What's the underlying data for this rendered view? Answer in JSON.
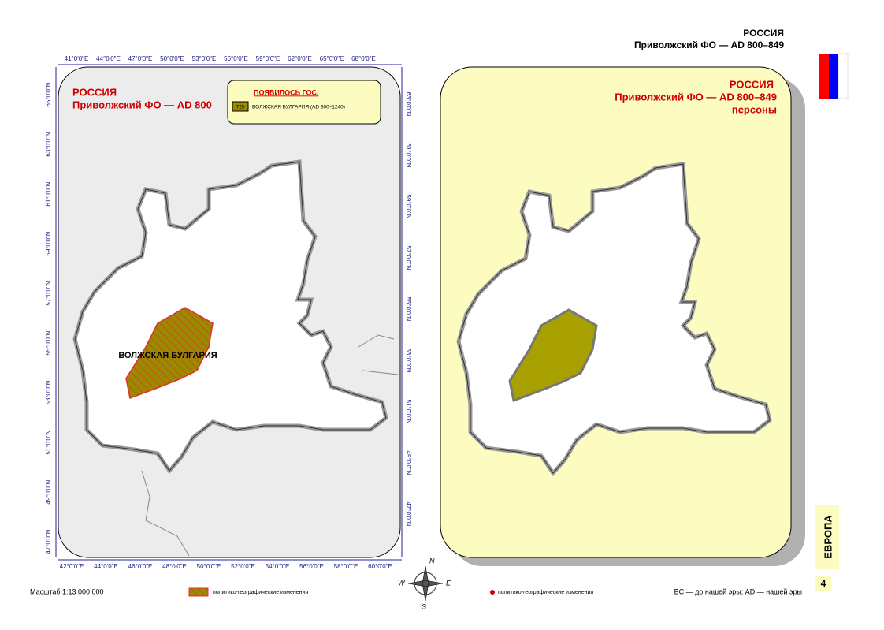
{
  "header": {
    "country": "РОССИЯ",
    "subtitle": "Приволжский ФО — AD 800–849"
  },
  "left_map": {
    "title": "РОССИЯ",
    "subtitle": "Приволжский ФО — AD 800",
    "legend": {
      "heading": "ПОЯВИЛОСЬ ГОС.",
      "code": "725",
      "entry": "ВОЛЖСКАЯ БУЛГАРИЯ (AD 800–1240)"
    },
    "region_label": "ВОЛЖСКАЯ БУЛГАРИЯ",
    "top_ticks": [
      "41°0'0\"E",
      "44°0'0\"E",
      "47°0'0\"E",
      "50°0'0\"E",
      "53°0'0\"E",
      "56°0'0\"E",
      "59°0'0\"E",
      "62°0'0\"E",
      "65°0'0\"E",
      "68°0'0\"E"
    ],
    "bottom_ticks": [
      "42°0'0\"E",
      "44°0'0\"E",
      "46°0'0\"E",
      "48°0'0\"E",
      "50°0'0\"E",
      "52°0'0\"E",
      "54°0'0\"E",
      "56°0'0\"E",
      "58°0'0\"E",
      "60°0'0\"E"
    ],
    "left_ticks": [
      "65°0'0\"N",
      "63°0'0\"N",
      "61°0'0\"N",
      "59°0'0\"N",
      "57°0'0\"N",
      "55°0'0\"N",
      "53°0'0\"N",
      "51°0'0\"N",
      "49°0'0\"N",
      "47°0'0\"N"
    ],
    "right_ticks": [
      "63°0'0\"N",
      "61°0'0\"N",
      "59°0'0\"N",
      "57°0'0\"N",
      "55°0'0\"N",
      "53°0'0\"N",
      "51°0'0\"N",
      "49°0'0\"N",
      "47°0'0\"N"
    ]
  },
  "right_map": {
    "title": "РОССИЯ",
    "subtitle": "Приволжский ФО — AD 800–849",
    "note": "персоны"
  },
  "compass": {
    "n": "N",
    "w": "W",
    "e": "E",
    "s": "S"
  },
  "footer": {
    "scale": "Масштаб 1:13 000 000",
    "legend_left": "политико-географические изменения",
    "legend_right": "политико-географические изменения",
    "era_note": "BC — до нашей эры; AD — нашей эры"
  },
  "side": {
    "region": "ЕВРОПА",
    "page": "4"
  }
}
